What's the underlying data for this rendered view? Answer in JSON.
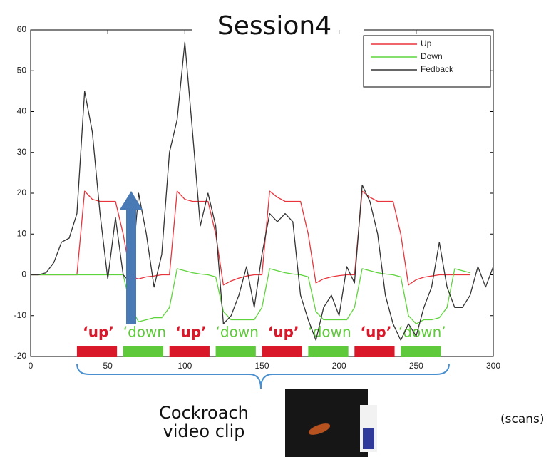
{
  "chart_data": {
    "type": "line",
    "title": "Session4",
    "x_label": "(scans)",
    "x": [
      0,
      5,
      10,
      15,
      20,
      25,
      30,
      35,
      40,
      45,
      50,
      55,
      60,
      65,
      70,
      75,
      80,
      85,
      90,
      95,
      100,
      105,
      110,
      115,
      120,
      125,
      130,
      135,
      140,
      145,
      150,
      155,
      160,
      165,
      170,
      175,
      180,
      185,
      190,
      195,
      200,
      205,
      210,
      215,
      220,
      225,
      230,
      235,
      240,
      245,
      250,
      255,
      260,
      265,
      270,
      275,
      280,
      285,
      290,
      295,
      300
    ],
    "series": [
      {
        "name": "Up",
        "color": "#e8343c",
        "values": [
          0,
          0,
          0,
          0,
          0,
          0,
          0,
          20.5,
          18.5,
          18,
          18,
          18,
          10,
          -0.5,
          -1,
          -0.5,
          -0.3,
          0,
          0,
          20.5,
          18.5,
          18,
          18,
          18,
          10,
          -2.5,
          -1.5,
          -0.8,
          -0.3,
          0,
          0,
          20.5,
          19,
          18,
          18,
          18,
          10,
          -2,
          -1,
          -0.5,
          -0.2,
          0,
          0,
          20.5,
          19,
          18,
          18,
          18,
          10,
          -2.5,
          -1.2,
          -0.6,
          -0.3,
          0,
          0,
          0,
          0,
          0,
          null,
          null,
          null
        ]
      },
      {
        "name": "Down",
        "color": "#5fd33c",
        "values": [
          0,
          0,
          0,
          0,
          0,
          0,
          0,
          0,
          0,
          0,
          0,
          0,
          0,
          -8,
          -11.5,
          -11,
          -10.5,
          -10.5,
          -8,
          1.5,
          1,
          0.5,
          0.2,
          0,
          -0.5,
          -9,
          -11,
          -11,
          -11,
          -11,
          -8,
          1.5,
          1,
          0.5,
          0.2,
          0,
          -0.5,
          -9,
          -11,
          -11,
          -11,
          -11,
          -8,
          1.5,
          1,
          0.5,
          0.2,
          0,
          -0.5,
          -10,
          -12,
          -11,
          -11,
          -10.5,
          -8,
          1.5,
          1,
          0.5,
          null,
          null,
          null
        ]
      },
      {
        "name": "Fedback",
        "color": "#333333",
        "values": [
          0,
          0,
          0.5,
          3,
          8,
          9,
          15,
          45,
          35,
          15,
          -1,
          14,
          0,
          -2,
          20,
          10,
          -3,
          5,
          30,
          38,
          57,
          35,
          12,
          20,
          12,
          -12,
          -10,
          -5,
          2,
          -8,
          5,
          15,
          13,
          15,
          13,
          -5,
          -11,
          -16,
          -8,
          -5,
          -10,
          2,
          -2,
          22,
          18,
          10,
          -5,
          -12,
          -16,
          -12,
          -15,
          -8,
          -3,
          8,
          -3,
          -8,
          -8,
          -5,
          2,
          -3,
          2
        ]
      }
    ],
    "xlim": [
      0,
      300
    ],
    "xticks": [
      0,
      50,
      100,
      150,
      200,
      250,
      300
    ],
    "ylim": [
      -20,
      60
    ],
    "yticks": [
      -20,
      -10,
      0,
      10,
      20,
      30,
      40,
      50,
      60
    ],
    "legend": "upper-right",
    "blocks": [
      {
        "label": "‘up’",
        "start": 30,
        "end": 56,
        "color": "#d9182a"
      },
      {
        "label": "‘down",
        "start": 60,
        "end": 86,
        "color": "#5ec93a"
      },
      {
        "label": "‘up’",
        "start": 90,
        "end": 116,
        "color": "#d9182a"
      },
      {
        "label": "‘down",
        "start": 120,
        "end": 146,
        "color": "#5ec93a"
      },
      {
        "label": "‘up’",
        "start": 150,
        "end": 176,
        "color": "#d9182a"
      },
      {
        "label": "‘down",
        "start": 180,
        "end": 206,
        "color": "#5ec93a"
      },
      {
        "label": "‘up’",
        "start": 210,
        "end": 236,
        "color": "#d9182a"
      },
      {
        "label": "‘down’",
        "start": 240,
        "end": 266,
        "color": "#5ec93a"
      }
    ],
    "clip_label": [
      "Cockroach",
      "video clip"
    ]
  }
}
